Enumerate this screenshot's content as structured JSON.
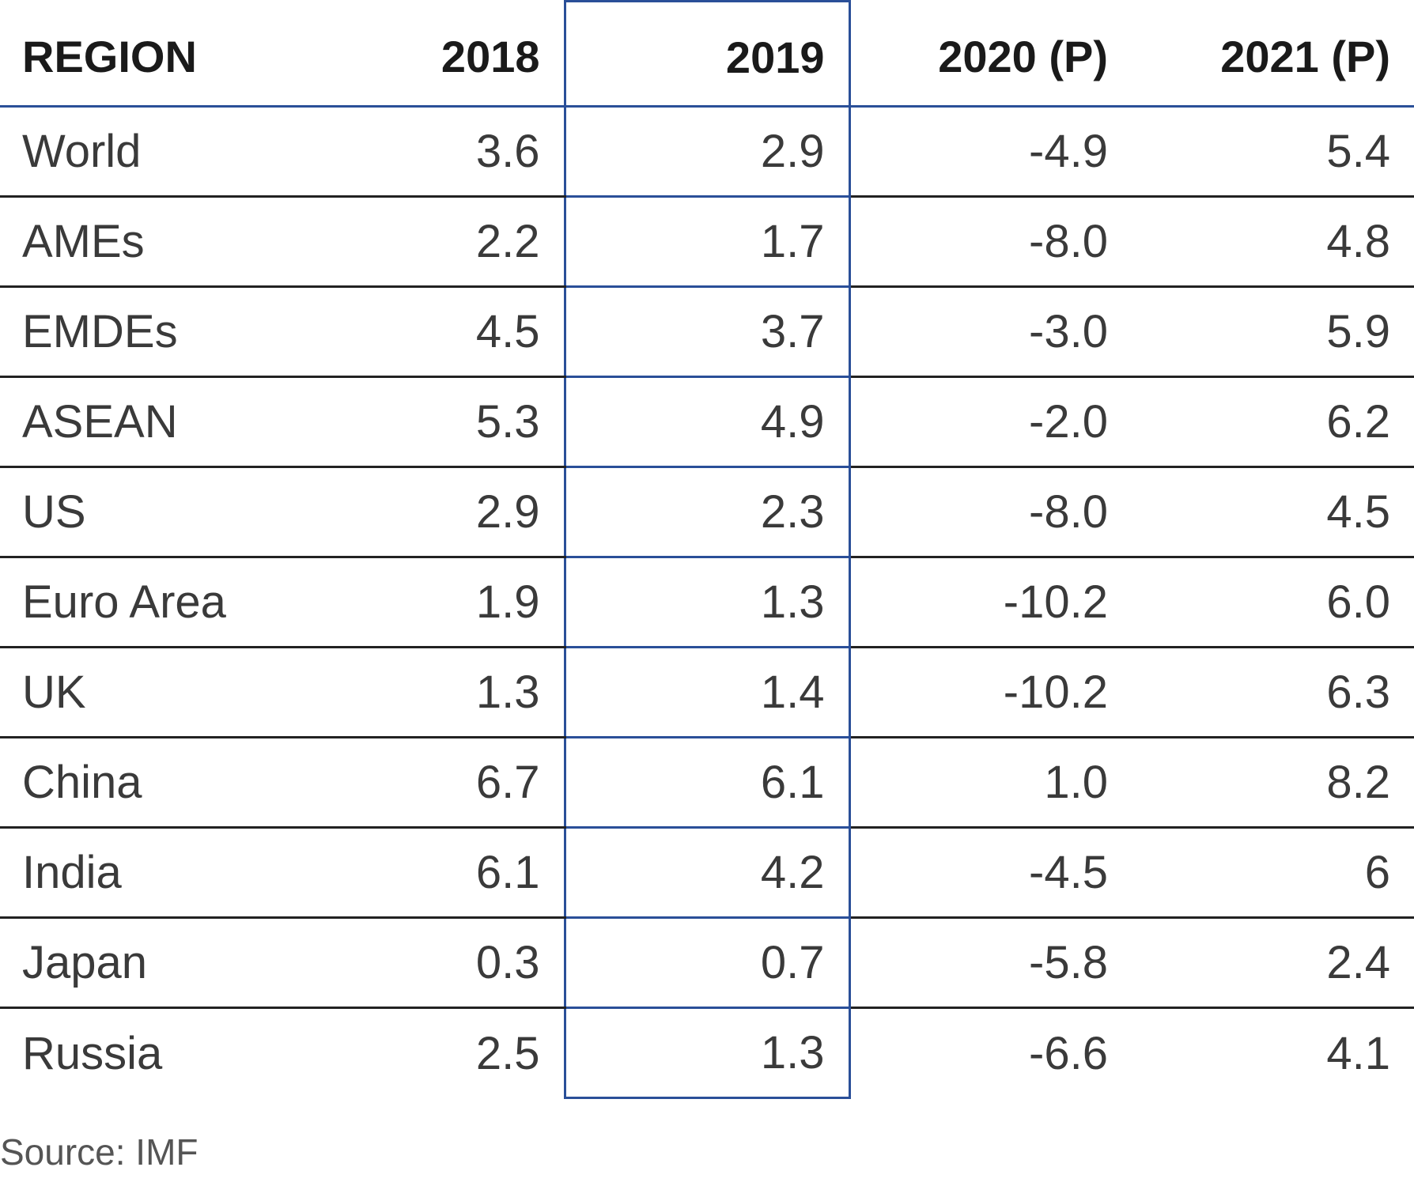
{
  "chart_data": {
    "type": "table",
    "columns": [
      "REGION",
      "2018",
      "2019",
      "2020 (P)",
      "2021 (P)"
    ],
    "highlighted_column": "2019",
    "rows": [
      [
        "World",
        "3.6",
        "2.9",
        "-4.9",
        "5.4"
      ],
      [
        "AMEs",
        "2.2",
        "1.7",
        "-8.0",
        "4.8"
      ],
      [
        "EMDEs",
        "4.5",
        "3.7",
        "-3.0",
        "5.9"
      ],
      [
        "ASEAN",
        "5.3",
        "4.9",
        "-2.0",
        "6.2"
      ],
      [
        "US",
        "2.9",
        "2.3",
        "-8.0",
        "4.5"
      ],
      [
        "Euro Area",
        "1.9",
        "1.3",
        "-10.2",
        "6.0"
      ],
      [
        "UK",
        "1.3",
        "1.4",
        "-10.2",
        "6.3"
      ],
      [
        "China",
        "6.7",
        "6.1",
        "1.0",
        "8.2"
      ],
      [
        "India",
        "6.1",
        "4.2",
        "-4.5",
        "6"
      ],
      [
        "Japan",
        "0.3",
        "0.7",
        "-5.8",
        "2.4"
      ],
      [
        "Russia",
        "2.5",
        "1.3",
        "-6.6",
        "4.1"
      ]
    ],
    "source": "Source: IMF",
    "colors": {
      "highlight_border": "#2a4f98",
      "row_border": "#222222"
    }
  }
}
